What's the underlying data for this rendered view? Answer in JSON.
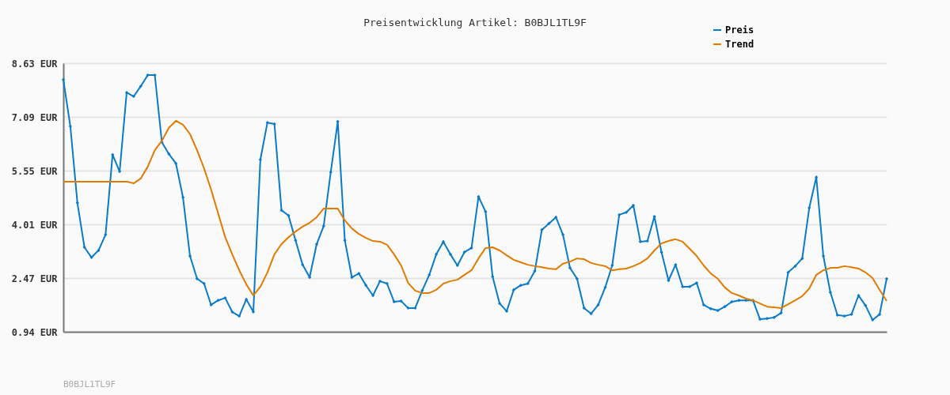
{
  "chart_data": {
    "type": "line",
    "title": "Preisentwicklung Artikel: B0BJL1TL9F",
    "categories": [
      null,
      null,
      null,
      null,
      null,
      null,
      null,
      null,
      null,
      null,
      null,
      null,
      null,
      null,
      null,
      null,
      null,
      null,
      null,
      null,
      null,
      null,
      null,
      null,
      null,
      null,
      null,
      null,
      null,
      null,
      null,
      null,
      null,
      null,
      null,
      null,
      null,
      null,
      null,
      null,
      null,
      null,
      null,
      null,
      null,
      null,
      null,
      null,
      null,
      null,
      null,
      null,
      null,
      null,
      null,
      null,
      null,
      null,
      null,
      null,
      null,
      null,
      null,
      null,
      null,
      null,
      null,
      null,
      null,
      null,
      null,
      null,
      null,
      null,
      null,
      null,
      null,
      null,
      null,
      null,
      null,
      null,
      null,
      null,
      null,
      null,
      null,
      null,
      null,
      null,
      null,
      null,
      null,
      null,
      null,
      null,
      null,
      null,
      null,
      null,
      null,
      null,
      null,
      null,
      null,
      null,
      null,
      null,
      null,
      null,
      null,
      null,
      null,
      null,
      null,
      null,
      null,
      null
    ],
    "series": [
      {
        "name": "Preis",
        "color": "#0a7bc8",
        "marker": "diamond",
        "values": [
          8.16,
          6.82,
          4.63,
          3.36,
          3.07,
          3.27,
          3.72,
          6.01,
          5.53,
          7.79,
          7.68,
          7.97,
          8.29,
          8.29,
          6.37,
          6.03,
          5.76,
          4.79,
          3.11,
          2.46,
          2.32,
          1.71,
          1.84,
          1.91,
          1.51,
          1.39,
          1.87,
          1.51,
          5.87,
          6.93,
          6.89,
          4.42,
          4.27,
          3.56,
          2.86,
          2.5,
          3.45,
          3.97,
          5.51,
          6.96,
          3.56,
          2.5,
          2.61,
          2.27,
          1.98,
          2.39,
          2.32,
          1.8,
          1.82,
          1.62,
          1.62,
          2.12,
          2.57,
          3.16,
          3.52,
          3.16,
          2.84,
          3.22,
          3.34,
          4.81,
          4.38,
          2.52,
          1.75,
          1.53,
          2.14,
          2.27,
          2.32,
          2.68,
          3.86,
          4.04,
          4.22,
          3.72,
          2.77,
          2.46,
          1.62,
          1.46,
          1.71,
          2.21,
          2.84,
          4.29,
          4.36,
          4.56,
          3.52,
          3.54,
          4.24,
          3.22,
          2.41,
          2.86,
          2.23,
          2.23,
          2.34,
          1.71,
          1.6,
          1.55,
          1.66,
          1.8,
          1.84,
          1.84,
          1.84,
          1.3,
          1.32,
          1.35,
          1.48,
          2.64,
          2.82,
          3.04,
          4.49,
          5.37,
          3.11,
          2.07,
          1.42,
          1.39,
          1.44,
          1.98,
          1.69,
          1.28,
          1.44,
          2.46
        ]
      },
      {
        "name": "Trend",
        "color": "#e07b00",
        "marker": "none",
        "values": [
          5.24,
          5.24,
          5.24,
          5.24,
          5.24,
          5.24,
          5.24,
          5.24,
          5.24,
          5.24,
          5.19,
          5.33,
          5.67,
          6.14,
          6.41,
          6.78,
          6.98,
          6.87,
          6.6,
          6.14,
          5.62,
          5.01,
          4.33,
          3.65,
          3.16,
          2.7,
          2.3,
          1.98,
          2.23,
          2.64,
          3.16,
          3.45,
          3.65,
          3.81,
          3.95,
          4.06,
          4.22,
          4.47,
          4.47,
          4.47,
          4.13,
          3.9,
          3.74,
          3.63,
          3.54,
          3.52,
          3.43,
          3.16,
          2.84,
          2.34,
          2.12,
          2.05,
          2.05,
          2.14,
          2.32,
          2.39,
          2.43,
          2.57,
          2.7,
          3.04,
          3.34,
          3.36,
          3.27,
          3.13,
          3.0,
          2.93,
          2.86,
          2.82,
          2.79,
          2.75,
          2.73,
          2.89,
          2.95,
          3.04,
          3.02,
          2.91,
          2.86,
          2.82,
          2.7,
          2.73,
          2.75,
          2.82,
          2.91,
          3.04,
          3.27,
          3.47,
          3.54,
          3.59,
          3.52,
          3.32,
          3.11,
          2.84,
          2.61,
          2.46,
          2.21,
          2.05,
          1.98,
          1.89,
          1.84,
          1.75,
          1.66,
          1.64,
          1.62,
          1.73,
          1.84,
          1.96,
          2.18,
          2.57,
          2.7,
          2.77,
          2.77,
          2.82,
          2.79,
          2.75,
          2.64,
          2.48,
          2.14,
          1.82
        ]
      }
    ],
    "ylim": [
      0.94,
      8.63
    ],
    "yticks": [
      {
        "value": 0.94,
        "label": "0.94 EUR"
      },
      {
        "value": 2.47,
        "label": "2.47 EUR"
      },
      {
        "value": 4.01,
        "label": "4.01 EUR"
      },
      {
        "value": 5.55,
        "label": "5.55 EUR"
      },
      {
        "value": 7.09,
        "label": "7.09 EUR"
      },
      {
        "value": 8.63,
        "label": "8.63 EUR"
      }
    ],
    "grid": "y",
    "legend": "top right",
    "tick_labels": "y",
    "line_style": "solid",
    "annotations": [
      "B0BJL1TL9F"
    ]
  }
}
